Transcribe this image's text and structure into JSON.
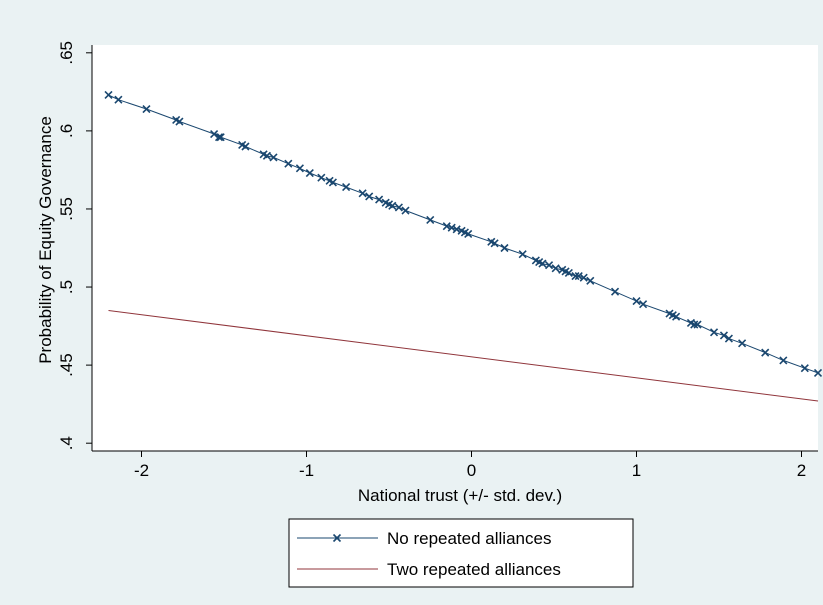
{
  "chart_data": {
    "type": "line",
    "title": "",
    "xlabel": "National trust (+/- std. dev.)",
    "ylabel": "Probability of Equity Governance",
    "xlim": [
      -2.3,
      2.1
    ],
    "ylim": [
      0.395,
      0.655
    ],
    "x_ticks": [
      -2,
      -1,
      0,
      1,
      2
    ],
    "x_tick_labels": [
      "-2",
      "-1",
      "0",
      "1",
      "2"
    ],
    "y_ticks": [
      0.4,
      0.45,
      0.5,
      0.55,
      0.6,
      0.65
    ],
    "y_tick_labels": [
      ".4",
      ".45",
      ".5",
      ".55",
      ".6",
      ".65"
    ],
    "grid": false,
    "legend_position": "bottom",
    "colors": {
      "plot_region_background": "#ffffff",
      "graph_background": "#eaf2f3",
      "series_no_repeated": "#1a476f",
      "series_two_repeated": "#90353b"
    },
    "series": [
      {
        "name": "No repeated alliances",
        "marker": "x",
        "color": "#1a476f",
        "x": [
          -2.2,
          -2.14,
          -1.97,
          -1.79,
          -1.77,
          -1.56,
          -1.53,
          -1.52,
          -1.39,
          -1.37,
          -1.26,
          -1.24,
          -1.2,
          -1.11,
          -1.04,
          -0.98,
          -0.91,
          -0.86,
          -0.84,
          -0.76,
          -0.66,
          -0.62,
          -0.56,
          -0.52,
          -0.5,
          -0.48,
          -0.44,
          -0.4,
          -0.25,
          -0.15,
          -0.12,
          -0.09,
          -0.06,
          -0.04,
          -0.02,
          0.12,
          0.14,
          0.2,
          0.31,
          0.39,
          0.41,
          0.43,
          0.47,
          0.51,
          0.55,
          0.57,
          0.59,
          0.63,
          0.65,
          0.68,
          0.72,
          0.87,
          1.0,
          1.04,
          1.2,
          1.22,
          1.24,
          1.33,
          1.35,
          1.37,
          1.47,
          1.53,
          1.56,
          1.64,
          1.78,
          1.89,
          2.02,
          2.1
        ],
        "y": [
          0.623,
          0.62,
          0.614,
          0.607,
          0.606,
          0.598,
          0.596,
          0.596,
          0.591,
          0.59,
          0.585,
          0.584,
          0.583,
          0.579,
          0.576,
          0.573,
          0.57,
          0.568,
          0.567,
          0.564,
          0.56,
          0.558,
          0.556,
          0.554,
          0.553,
          0.552,
          0.551,
          0.549,
          0.543,
          0.539,
          0.538,
          0.537,
          0.536,
          0.535,
          0.534,
          0.529,
          0.528,
          0.525,
          0.521,
          0.517,
          0.516,
          0.515,
          0.514,
          0.512,
          0.511,
          0.51,
          0.509,
          0.507,
          0.507,
          0.506,
          0.504,
          0.497,
          0.491,
          0.489,
          0.483,
          0.482,
          0.481,
          0.477,
          0.476,
          0.476,
          0.471,
          0.469,
          0.467,
          0.464,
          0.458,
          0.453,
          0.448,
          0.445
        ]
      },
      {
        "name": "Two repeated alliances",
        "marker": "none",
        "color": "#90353b",
        "x": [
          -2.2,
          2.1
        ],
        "y": [
          0.485,
          0.427
        ]
      }
    ]
  }
}
